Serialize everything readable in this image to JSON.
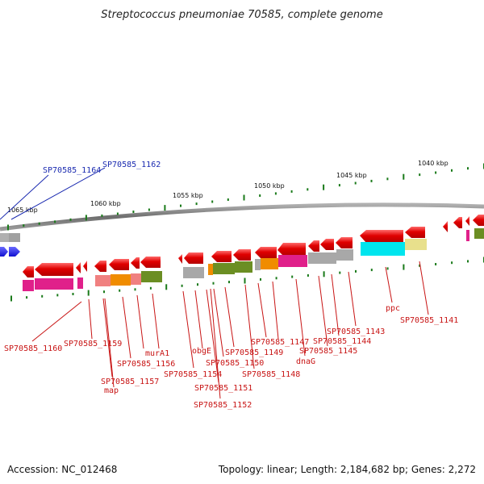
{
  "title": "Streptococcus pneumoniae 70585, complete genome",
  "footer": {
    "accession": "Accession: NC_012468",
    "topology": "Topology: linear; Length: 2,184,682 bp; Genes: 2,272"
  },
  "ticks": [
    {
      "label": "1065 kbp"
    },
    {
      "label": "1060 kbp"
    },
    {
      "label": "1055 kbp"
    },
    {
      "label": "1050 kbp"
    },
    {
      "label": "1045 kbp"
    },
    {
      "label": "1040 kbp"
    }
  ],
  "genes_red": [
    "SP70585_1160",
    "SP70585_1159",
    "SP70585_1157",
    "map",
    "SP70585_1156",
    "murA1",
    "SP70585_1154",
    "obgE",
    "SP70585_1151",
    "SP70585_1152",
    "SP70585_1150",
    "SP70585_1149",
    "SP70585_1148",
    "SP70585_1147",
    "dnaG",
    "SP70585_1145",
    "SP70585_1144",
    "SP70585_1143",
    "ppc",
    "SP70585_1141"
  ],
  "genes_blue": [
    "SP70585_1164",
    "SP70585_1162"
  ],
  "colors": {
    "gene": "#e00000",
    "backbone": "#808080",
    "tick": "#1a7a1a",
    "label_red": "#c81414",
    "label_blue": "#1a2ab0",
    "magenta": "#e0208a",
    "olive": "#6b8e23",
    "orange": "#f08c00",
    "gray": "#a8a8a8",
    "cyan": "#00e5ee",
    "khaki": "#e8e08c",
    "salmon": "#f08080",
    "blue": "#1c1cf0"
  }
}
